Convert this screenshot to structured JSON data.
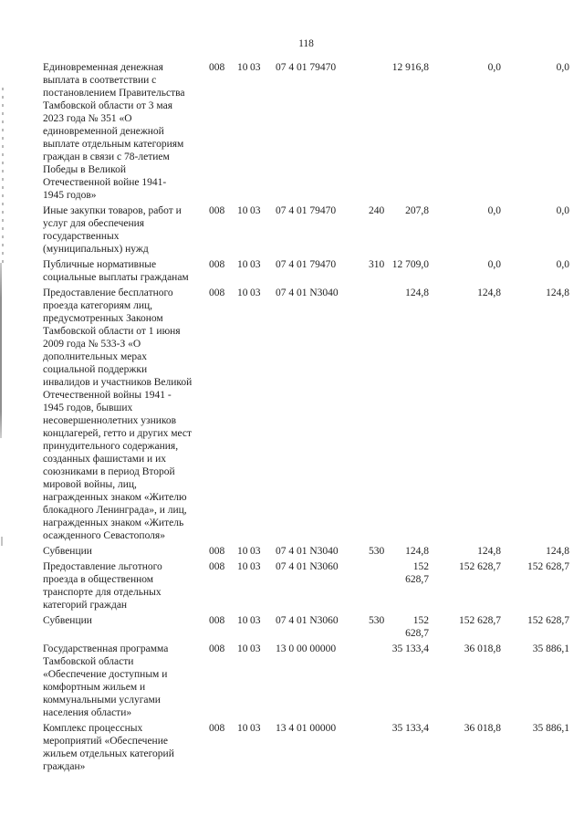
{
  "page": {
    "number": "118"
  },
  "table": {
    "rows": [
      {
        "name": "Единовременная денежная\nвыплата в соответствии с\nпостановлением Правительства\nТамбовской области от 3 мая\n2023 года № 351 «О\nединовременной денежной\nвыплате отдельным категориям\nграждан в связи с 78-летием\nПобеды в Великой\nОтечественной войне 1941-\n1945 годов»",
        "grbs": "008",
        "rz": "10",
        "pr": "03",
        "csr": "07 4 01 79470",
        "vr": "",
        "a1": "12 916,8",
        "a2": "0,0",
        "a3": "0,0"
      },
      {
        "name": "Иные закупки товаров, работ и\nуслуг для обеспечения\nгосударственных\n(муниципальных) нужд",
        "grbs": "008",
        "rz": "10",
        "pr": "03",
        "csr": "07 4 01 79470",
        "vr": "240",
        "a1": "207,8",
        "a2": "0,0",
        "a3": "0,0"
      },
      {
        "name": "Публичные нормативные\nсоциальные выплаты гражданам",
        "grbs": "008",
        "rz": "10",
        "pr": "03",
        "csr": "07 4 01 79470",
        "vr": "310",
        "a1": "12 709,0",
        "a2": "0,0",
        "a3": "0,0"
      },
      {
        "name": "Предоставление бесплатного\nпроезда категориям лиц,\nпредусмотренных Законом\nТамбовской области от 1 июня\n2009 года № 533-З «О\nдополнительных мерах\nсоциальной поддержки\nинвалидов и участников Великой\nОтечественной войны 1941 -\n1945 годов, бывших\nнесовершеннолетних узников\nконцлагерей, гетто и других мест\nпринудительного содержания,\nсозданных фашистами и их\nсоюзниками в период Второй\nмировой войны, лиц,\nнагражденных знаком «Жителю\nблокадного Ленинграда», и лиц,\nнагражденных знаком «Житель\nосажденного Севастополя»",
        "grbs": "008",
        "rz": "10",
        "pr": "03",
        "csr": "07 4 01 N3040",
        "vr": "",
        "a1": "124,8",
        "a2": "124,8",
        "a3": "124,8"
      },
      {
        "name": "Субвенции",
        "grbs": "008",
        "rz": "10",
        "pr": "03",
        "csr": "07 4 01 N3040",
        "vr": "530",
        "a1": "124,8",
        "a2": "124,8",
        "a3": "124,8"
      },
      {
        "name": "Предоставление льготного\nпроезда в общественном\nтранспорте для отдельных\nкатегорий граждан",
        "grbs": "008",
        "rz": "10",
        "pr": "03",
        "csr": "07 4 01 N3060",
        "vr": "",
        "a1": "152 628,7",
        "a2": "152 628,7",
        "a3": "152 628,7"
      },
      {
        "name": "Субвенции",
        "grbs": "008",
        "rz": "10",
        "pr": "03",
        "csr": "07 4 01 N3060",
        "vr": "530",
        "a1": "152 628,7",
        "a2": "152 628,7",
        "a3": "152 628,7"
      },
      {
        "name": "Государственная программа\nТамбовской области\n«Обеспечение доступным и\nкомфортным жильем и\nкоммунальными услугами\nнаселения области»",
        "grbs": "008",
        "rz": "10",
        "pr": "03",
        "csr": "13 0 00 00000",
        "vr": "",
        "a1": "35 133,4",
        "a2": "36 018,8",
        "a3": "35 886,1"
      },
      {
        "name": "Комплекс процессных\nмероприятий «Обеспечение\nжильем отдельных категорий\nграждан»",
        "grbs": "008",
        "rz": "10",
        "pr": "03",
        "csr": "13 4 01 00000",
        "vr": "",
        "a1": "35 133,4",
        "a2": "36 018,8",
        "a3": "35 886,1"
      }
    ]
  }
}
